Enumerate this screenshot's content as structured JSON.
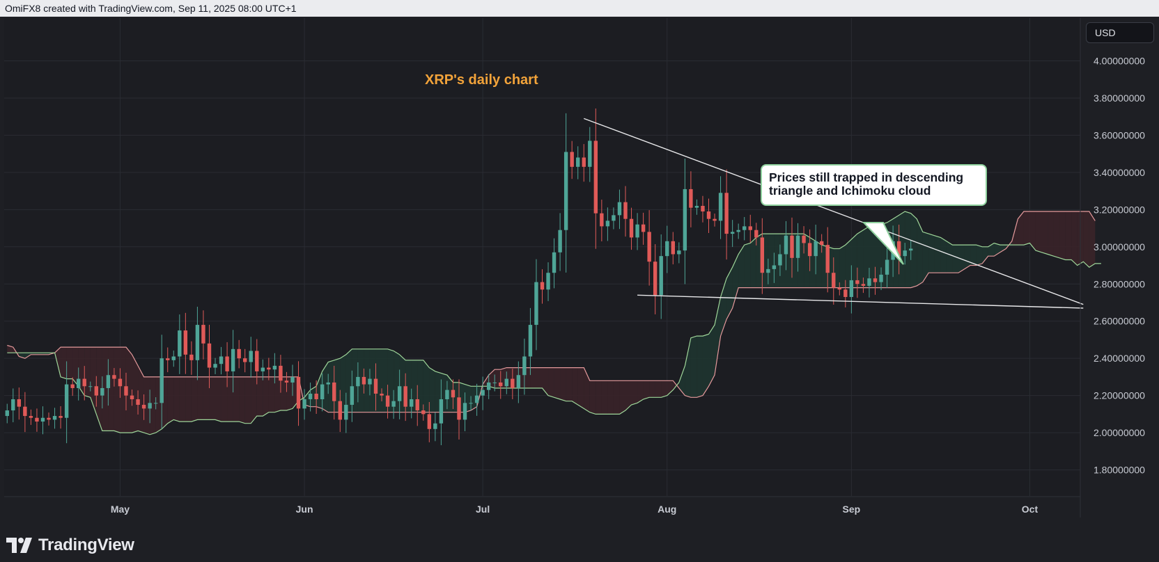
{
  "header": {
    "text": "OmiFX8 created with TradingView.com, Sep 11, 2025 08:00 UTC+1"
  },
  "currency": {
    "label": "USD"
  },
  "brand": {
    "name": "TradingView"
  },
  "colors": {
    "background": "#1e1f24",
    "bullish": "#4fa597",
    "bearish": "#e05a58",
    "title": "#f2a33a",
    "cloud_bull_fill": "#1f3530",
    "cloud_bear_fill": "#3a2329",
    "senkou_a": "#9fd79a",
    "senkou_b": "#e59a9c",
    "trendline": "#e8e8ea"
  },
  "icons": {
    "logo": "tradingview-logo-icon"
  },
  "chart_data": {
    "type": "candlestick",
    "title": "XRP's daily chart",
    "ylim": [
      1.66,
      4.23
    ],
    "yticks": [
      1.8,
      2.0,
      2.2,
      2.4,
      2.6,
      2.8,
      3.0,
      3.2,
      3.4,
      3.6,
      3.8,
      4.0
    ],
    "ytick_labels": [
      "1.80000000",
      "2.00000000",
      "2.20000000",
      "2.40000000",
      "2.60000000",
      "2.80000000",
      "3.00000000",
      "3.20000000",
      "3.40000000",
      "3.60000000",
      "3.80000000",
      "4.00000000"
    ],
    "x_labels": [
      {
        "date": "2025-05-01",
        "label": "May"
      },
      {
        "date": "2025-06-01",
        "label": "Jun"
      },
      {
        "date": "2025-07-01",
        "label": "Jul"
      },
      {
        "date": "2025-08-01",
        "label": "Aug"
      },
      {
        "date": "2025-09-01",
        "label": "Sep"
      },
      {
        "date": "2025-10-01",
        "label": "Oct"
      }
    ],
    "date_range": [
      "2025-04-12",
      "2025-10-10"
    ],
    "grid": true,
    "closes": [
      2.12,
      2.18,
      2.14,
      2.09,
      2.08,
      2.06,
      2.08,
      2.07,
      2.09,
      2.08,
      2.26,
      2.24,
      2.29,
      2.25,
      2.25,
      2.2,
      2.24,
      2.31,
      2.29,
      2.25,
      2.2,
      2.18,
      2.15,
      2.13,
      2.16,
      2.16,
      2.4,
      2.39,
      2.41,
      2.55,
      2.42,
      2.39,
      2.58,
      2.48,
      2.35,
      2.37,
      2.41,
      2.33,
      2.45,
      2.4,
      2.38,
      2.44,
      2.33,
      2.35,
      2.34,
      2.36,
      2.28,
      2.27,
      2.3,
      2.13,
      2.18,
      2.21,
      2.18,
      2.26,
      2.27,
      2.17,
      2.07,
      2.15,
      2.25,
      2.3,
      2.26,
      2.29,
      2.21,
      2.2,
      2.14,
      2.17,
      2.25,
      2.14,
      2.18,
      2.12,
      2.1,
      2.02,
      2.05,
      2.18,
      2.23,
      2.19,
      2.07,
      2.16,
      2.16,
      2.2,
      2.23,
      2.27,
      2.27,
      2.25,
      2.29,
      2.24,
      2.31,
      2.41,
      2.58,
      2.81,
      2.77,
      2.86,
      2.97,
      3.09,
      3.51,
      3.43,
      3.48,
      3.43,
      3.57,
      3.18,
      3.11,
      3.14,
      3.17,
      3.24,
      3.15,
      3.05,
      3.12,
      3.08,
      2.92,
      2.74,
      2.95,
      3.03,
      2.96,
      2.98,
      3.31,
      3.21,
      3.22,
      3.19,
      3.15,
      3.14,
      3.29,
      3.07,
      3.08,
      3.09,
      3.11,
      3.09,
      3.05,
      2.86,
      2.88,
      2.9,
      2.96,
      3.06,
      2.94,
      3.06,
      3.02,
      2.95,
      3.03,
      3.01,
      2.86,
      2.78,
      2.77,
      2.73,
      2.82,
      2.8,
      2.79,
      2.83,
      2.81,
      2.85,
      2.93,
      3.03,
      2.95,
      2.98,
      2.99
    ],
    "series": [
      {
        "name": "Senkou Span A",
        "values": [
          2.43,
          2.43,
          2.43,
          2.43,
          2.43,
          2.43,
          2.43,
          2.43,
          2.43,
          2.3,
          2.29,
          2.29,
          2.25,
          2.2,
          2.19,
          2.1,
          2.01,
          2.01,
          2.01,
          2.0,
          2.0,
          2.0,
          2.01,
          2.0,
          1.99,
          2.0,
          2.02,
          2.05,
          2.07,
          2.06,
          2.06,
          2.06,
          2.07,
          2.07,
          2.07,
          2.07,
          2.06,
          2.06,
          2.06,
          2.06,
          2.05,
          2.05,
          2.09,
          2.09,
          2.11,
          2.11,
          2.12,
          2.12,
          2.13,
          2.17,
          2.19,
          2.23,
          2.25,
          2.33,
          2.38,
          2.39,
          2.4,
          2.42,
          2.45,
          2.45,
          2.45,
          2.45,
          2.45,
          2.45,
          2.45,
          2.44,
          2.42,
          2.39,
          2.39,
          2.39,
          2.39,
          2.35,
          2.33,
          2.32,
          2.31,
          2.27,
          2.27,
          2.26,
          2.25,
          2.25,
          2.25,
          2.25,
          2.24,
          2.24,
          2.24,
          2.24,
          2.24,
          2.24,
          2.24,
          2.24,
          2.24,
          2.2,
          2.19,
          2.18,
          2.17,
          2.17,
          2.15,
          2.13,
          2.11,
          2.1,
          2.1,
          2.1,
          2.1,
          2.1,
          2.12,
          2.15,
          2.16,
          2.18,
          2.19,
          2.19,
          2.19,
          2.2,
          2.23,
          2.27,
          2.36,
          2.51,
          2.52,
          2.52,
          2.53,
          2.58,
          2.73,
          2.83,
          2.89,
          2.96,
          3.01,
          3.02,
          3.05,
          3.07,
          3.07,
          3.07,
          3.07,
          3.07,
          3.07,
          3.07,
          3.07,
          3.05,
          3.03,
          3.01,
          3.0,
          2.99,
          2.99,
          3.01,
          3.04,
          3.07,
          3.09,
          3.11,
          3.12,
          3.12,
          3.13,
          3.15,
          3.17,
          3.19,
          3.18,
          3.15,
          3.08,
          3.07,
          3.06,
          3.05,
          3.03,
          3.01,
          3.01,
          3.01,
          3.01,
          3.01,
          3.0,
          3.0,
          3.02,
          3.01,
          3.01,
          3.01,
          3.01,
          3.01,
          3.02,
          2.98,
          2.97,
          2.96,
          2.95,
          2.94,
          2.93,
          2.93,
          2.9,
          2.92,
          2.89,
          2.91,
          2.91
        ]
      },
      {
        "name": "Senkou Span B",
        "values": [
          2.47,
          2.46,
          2.41,
          2.4,
          2.42,
          2.42,
          2.42,
          2.42,
          2.43,
          2.46,
          2.46,
          2.46,
          2.46,
          2.46,
          2.46,
          2.46,
          2.46,
          2.46,
          2.46,
          2.46,
          2.46,
          2.42,
          2.36,
          2.3,
          2.3,
          2.3,
          2.3,
          2.3,
          2.3,
          2.3,
          2.3,
          2.3,
          2.3,
          2.3,
          2.3,
          2.3,
          2.3,
          2.3,
          2.3,
          2.3,
          2.3,
          2.3,
          2.3,
          2.3,
          2.3,
          2.3,
          2.3,
          2.3,
          2.3,
          2.3,
          2.15,
          2.14,
          2.14,
          2.13,
          2.11,
          2.11,
          2.11,
          2.11,
          2.11,
          2.11,
          2.11,
          2.11,
          2.11,
          2.11,
          2.11,
          2.11,
          2.11,
          2.11,
          2.11,
          2.11,
          2.11,
          2.11,
          2.11,
          2.11,
          2.11,
          2.11,
          2.11,
          2.11,
          2.12,
          2.14,
          2.26,
          2.31,
          2.34,
          2.34,
          2.35,
          2.35,
          2.35,
          2.35,
          2.35,
          2.35,
          2.35,
          2.35,
          2.35,
          2.35,
          2.35,
          2.35,
          2.35,
          2.35,
          2.28,
          2.28,
          2.28,
          2.28,
          2.28,
          2.28,
          2.28,
          2.28,
          2.28,
          2.28,
          2.28,
          2.28,
          2.28,
          2.28,
          2.28,
          2.24,
          2.2,
          2.19,
          2.19,
          2.2,
          2.25,
          2.31,
          2.52,
          2.61,
          2.67,
          2.78,
          2.78,
          2.78,
          2.78,
          2.78,
          2.78,
          2.78,
          2.78,
          2.78,
          2.78,
          2.78,
          2.78,
          2.78,
          2.78,
          2.78,
          2.78,
          2.78,
          2.78,
          2.78,
          2.78,
          2.78,
          2.78,
          2.78,
          2.78,
          2.78,
          2.78,
          2.78,
          2.78,
          2.78,
          2.78,
          2.79,
          2.81,
          2.86,
          2.86,
          2.86,
          2.86,
          2.86,
          2.86,
          2.88,
          2.9,
          2.9,
          2.91,
          2.95,
          2.95,
          2.97,
          2.99,
          3.03,
          3.15,
          3.19,
          3.19,
          3.19,
          3.19,
          3.19,
          3.19,
          3.19,
          3.19,
          3.19,
          3.19,
          3.19,
          3.19,
          3.14
        ]
      }
    ],
    "trendlines": [
      {
        "name": "upper",
        "start": [
          "2025-07-18",
          3.69
        ],
        "end": [
          "2025-10-10",
          2.69
        ]
      },
      {
        "name": "lower",
        "start": [
          "2025-07-27",
          2.74
        ],
        "end": [
          "2025-10-10",
          2.67
        ]
      }
    ],
    "annotation": "Prices still trapped in descending triangle and Ichimoku cloud"
  }
}
